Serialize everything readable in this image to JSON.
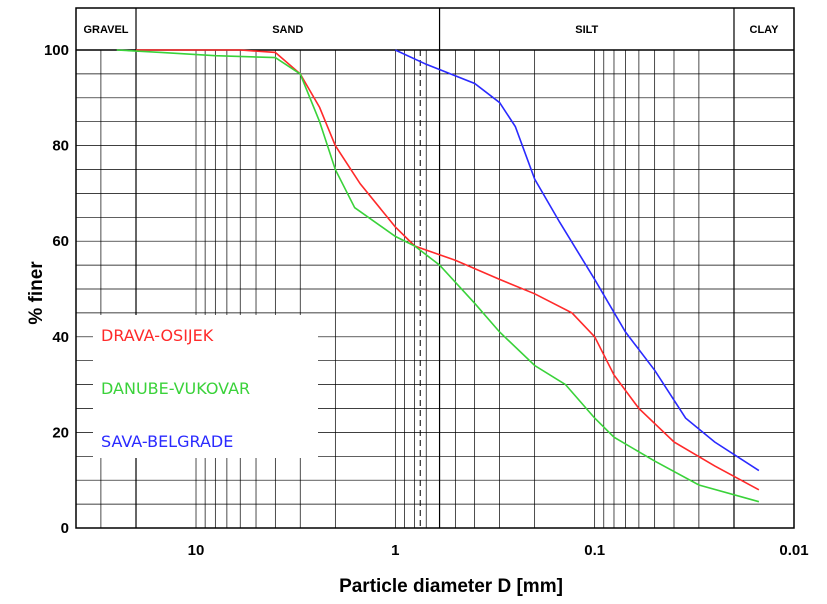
{
  "chart_data": {
    "type": "line",
    "xlabel": "Particle diameter D [mm]",
    "ylabel": "% finer",
    "x_scale": "log",
    "x_reversed": true,
    "xlim": [
      0.01,
      40
    ],
    "ylim": [
      0,
      100
    ],
    "x_ticks": [
      10,
      1,
      0.1,
      0.01
    ],
    "x_tick_labels": [
      "10",
      "1",
      "0.1",
      "0.01"
    ],
    "y_ticks": [
      0,
      20,
      40,
      60,
      80,
      100
    ],
    "y_tick_labels": [
      "0",
      "20",
      "40",
      "60",
      "80",
      "100"
    ],
    "grid": true,
    "legend_position": "bottom-left",
    "bands": [
      {
        "label": "GRAVEL",
        "from": 40,
        "to": 20
      },
      {
        "label": "SAND",
        "from": 20,
        "to": 0.6
      },
      {
        "label": "SILT",
        "from": 0.6,
        "to": 0.02
      },
      {
        "label": "CLAY",
        "from": 0.02,
        "to": 0.01
      }
    ],
    "series": [
      {
        "name": "DRAVA-OSIJEK",
        "color": "#ff2a2a",
        "points": [
          [
            20,
            100
          ],
          [
            6,
            100
          ],
          [
            4,
            99.5
          ],
          [
            3,
            95
          ],
          [
            2.4,
            88
          ],
          [
            2,
            80
          ],
          [
            1.5,
            72
          ],
          [
            1,
            63
          ],
          [
            0.8,
            59
          ],
          [
            0.5,
            56
          ],
          [
            0.3,
            52
          ],
          [
            0.2,
            49
          ],
          [
            0.13,
            45
          ],
          [
            0.1,
            40
          ],
          [
            0.08,
            32
          ],
          [
            0.06,
            25
          ],
          [
            0.04,
            18
          ],
          [
            0.025,
            13
          ],
          [
            0.015,
            8
          ]
        ]
      },
      {
        "name": "DANUBE-VUKOVAR",
        "color": "#3ad23a",
        "points": [
          [
            25,
            100
          ],
          [
            15,
            99.5
          ],
          [
            8,
            98.8
          ],
          [
            4,
            98.4
          ],
          [
            3,
            95
          ],
          [
            2.4,
            85
          ],
          [
            2,
            75
          ],
          [
            1.6,
            67
          ],
          [
            1,
            61
          ],
          [
            0.8,
            59
          ],
          [
            0.6,
            55
          ],
          [
            0.4,
            47
          ],
          [
            0.3,
            41
          ],
          [
            0.2,
            34
          ],
          [
            0.14,
            30
          ],
          [
            0.1,
            23
          ],
          [
            0.08,
            19
          ],
          [
            0.05,
            14
          ],
          [
            0.03,
            9
          ],
          [
            0.015,
            5.5
          ]
        ]
      },
      {
        "name": "SAVA-BELGRADE",
        "color": "#2a2aff",
        "points": [
          [
            1,
            100
          ],
          [
            0.7,
            97
          ],
          [
            0.4,
            93
          ],
          [
            0.3,
            89
          ],
          [
            0.25,
            84
          ],
          [
            0.2,
            73
          ],
          [
            0.15,
            64
          ],
          [
            0.1,
            52
          ],
          [
            0.07,
            41
          ],
          [
            0.05,
            33
          ],
          [
            0.035,
            23
          ],
          [
            0.025,
            18
          ],
          [
            0.015,
            12
          ]
        ]
      }
    ]
  }
}
